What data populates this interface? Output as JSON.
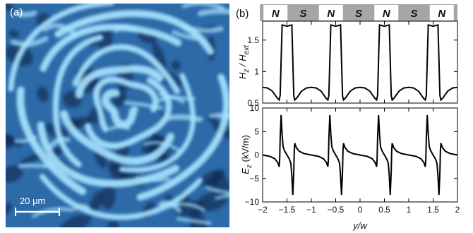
{
  "panel_a": {
    "label": "(a)",
    "scale_bar_label": "20 μm"
  },
  "panel_b": {
    "label": "(b)",
    "magnet_strip": [
      "N",
      "S",
      "N",
      "S",
      "N",
      "S",
      "N"
    ]
  },
  "colors": {
    "image_dark": "#0c2a52",
    "image_mid": "#2d6aa8",
    "image_light": "#a8e4ff",
    "strip_gray": "#a6a6a6",
    "strip_white": "#ffffff",
    "line": "#000000"
  },
  "chart_data": [
    {
      "type": "line",
      "title": "",
      "xlabel": "",
      "ylabel": "H_z / H_ext",
      "ylabel_main": "H",
      "ylabel_sub1": "z",
      "ylabel_mid": " / H",
      "ylabel_sub2": "ext",
      "xlim": [
        -2,
        2
      ],
      "ylim": [
        0.5,
        1.8
      ],
      "yticks": [
        "0.5",
        "1",
        "1.5"
      ],
      "grid": false,
      "x": [
        -2.0,
        -1.9,
        -1.8,
        -1.7,
        -1.66,
        -1.64,
        -1.6,
        -1.5,
        -1.4,
        -1.36,
        -1.34,
        -1.3,
        -1.2,
        -1.1,
        -1.0,
        -0.9,
        -0.8,
        -0.7,
        -0.66,
        -0.64,
        -0.6,
        -0.5,
        -0.4,
        -0.36,
        -0.34,
        -0.3,
        -0.2,
        -0.1,
        0.0,
        0.1,
        0.2,
        0.3,
        0.34,
        0.36,
        0.4,
        0.5,
        0.6,
        0.64,
        0.66,
        0.7,
        0.8,
        0.9,
        1.0,
        1.1,
        1.2,
        1.3,
        1.34,
        1.36,
        1.4,
        1.5,
        1.6,
        1.64,
        1.66,
        1.7,
        1.8,
        1.9,
        2.0
      ],
      "series": [
        {
          "values": [
            0.75,
            0.74,
            0.69,
            0.58,
            0.55,
            0.62,
            1.74,
            1.72,
            1.74,
            0.62,
            0.55,
            0.58,
            0.69,
            0.74,
            0.75,
            0.74,
            0.69,
            0.58,
            0.55,
            0.62,
            1.74,
            1.72,
            1.74,
            0.62,
            0.55,
            0.58,
            0.69,
            0.74,
            0.75,
            0.74,
            0.69,
            0.58,
            0.55,
            0.62,
            1.74,
            1.72,
            1.74,
            0.62,
            0.55,
            0.58,
            0.69,
            0.74,
            0.75,
            0.74,
            0.69,
            0.58,
            0.55,
            0.62,
            1.74,
            1.72,
            1.74,
            0.62,
            0.55,
            0.58,
            0.69,
            0.74,
            0.75
          ]
        }
      ]
    },
    {
      "type": "line",
      "title": "",
      "xlabel": "y/w",
      "ylabel": "E_z (kV/m)",
      "ylabel_main": "E",
      "ylabel_sub1": "z",
      "ylabel_rest": " (kV/m)",
      "xlim": [
        -2,
        2
      ],
      "ylim": [
        -10,
        10
      ],
      "xticks": [
        "−2",
        "−1.5",
        "−1",
        "−0.5",
        "0",
        "0.5",
        "1",
        "1.5",
        "2"
      ],
      "yticks": [
        "−10",
        "−5",
        "0",
        "5",
        "10"
      ],
      "grid": false,
      "x": [
        -2.0,
        -1.85,
        -1.75,
        -1.69,
        -1.66,
        -1.65,
        -1.64,
        -1.62,
        -1.6,
        -1.58,
        -1.55,
        -1.5,
        -1.45,
        -1.42,
        -1.4,
        -1.38,
        -1.36,
        -1.35,
        -1.34,
        -1.31,
        -1.25,
        -1.15,
        -1.0,
        -0.85,
        -0.75,
        -0.69,
        -0.66,
        -0.65,
        -0.64,
        -0.62,
        -0.6,
        -0.58,
        -0.55,
        -0.5,
        -0.45,
        -0.42,
        -0.4,
        -0.38,
        -0.36,
        -0.35,
        -0.34,
        -0.31,
        -0.25,
        -0.15,
        0.0,
        0.15,
        0.25,
        0.31,
        0.34,
        0.35,
        0.36,
        0.38,
        0.4,
        0.42,
        0.45,
        0.5,
        0.55,
        0.58,
        0.6,
        0.62,
        0.64,
        0.65,
        0.66,
        0.69,
        0.75,
        0.85,
        1.0,
        1.15,
        1.25,
        1.31,
        1.34,
        1.35,
        1.36,
        1.38,
        1.4,
        1.42,
        1.45,
        1.5,
        1.55,
        1.58,
        1.6,
        1.62,
        1.64,
        1.65,
        1.66,
        1.69,
        1.75,
        1.85,
        2.0
      ],
      "series": [
        {
          "values": [
            0.0,
            -0.3,
            -0.8,
            -1.6,
            -2.5,
            -1.0,
            3.5,
            8.5,
            4.5,
            1.8,
            0.9,
            0.0,
            -0.9,
            -1.8,
            -4.5,
            -8.5,
            -3.5,
            1.0,
            2.5,
            1.6,
            0.8,
            0.3,
            0.0,
            -0.3,
            -0.8,
            -1.6,
            -2.5,
            -1.0,
            3.5,
            8.5,
            4.5,
            1.8,
            0.9,
            0.0,
            -0.9,
            -1.8,
            -4.5,
            -8.5,
            -3.5,
            1.0,
            2.5,
            1.6,
            0.8,
            0.3,
            0.0,
            -0.3,
            -0.8,
            -1.6,
            -2.5,
            -1.0,
            3.5,
            8.5,
            4.5,
            1.8,
            0.9,
            0.0,
            -0.9,
            -1.8,
            -4.5,
            -8.5,
            -3.5,
            1.0,
            2.5,
            1.6,
            0.8,
            0.3,
            0.0,
            -0.3,
            -0.8,
            -1.6,
            -2.5,
            -1.0,
            3.5,
            8.5,
            4.5,
            1.8,
            0.9,
            0.0,
            -0.9,
            -1.8,
            -4.5,
            -8.5,
            -3.5,
            1.0,
            2.5,
            1.6,
            0.8,
            0.3,
            0.0
          ]
        }
      ]
    }
  ]
}
